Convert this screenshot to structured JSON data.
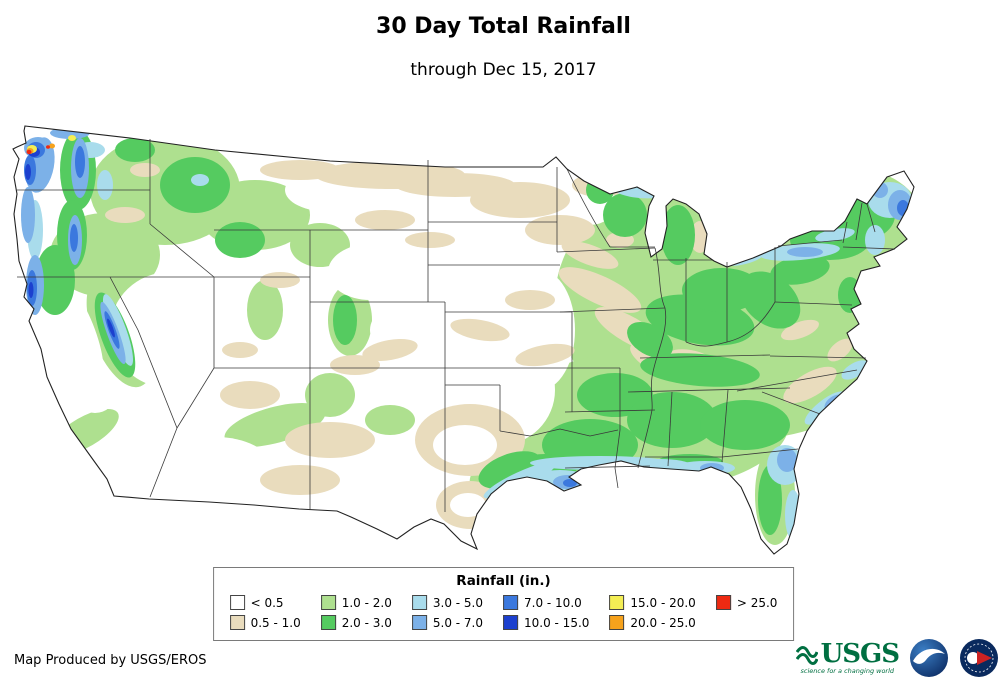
{
  "header": {
    "title": "30 Day Total Rainfall",
    "subtitle": "through Dec 15, 2017"
  },
  "legend": {
    "title": "Rainfall (in.)",
    "entries": [
      {
        "label": "< 0.5",
        "color": "#ffffff"
      },
      {
        "label": "0.5 - 1.0",
        "color": "#e9dcbd"
      },
      {
        "label": "1.0 - 2.0",
        "color": "#aee08f"
      },
      {
        "label": "2.0 - 3.0",
        "color": "#55cb60"
      },
      {
        "label": "3.0 - 5.0",
        "color": "#a9dcec"
      },
      {
        "label": "5.0 - 7.0",
        "color": "#7cb1e8"
      },
      {
        "label": "7.0 - 10.0",
        "color": "#3b78de"
      },
      {
        "label": "10.0 - 15.0",
        "color": "#1c40cf"
      },
      {
        "label": "15.0 - 20.0",
        "color": "#f4ee54"
      },
      {
        "label": "20.0 - 25.0",
        "color": "#f6a21c"
      },
      {
        "label": "> 25.0",
        "color": "#ee2a12"
      }
    ],
    "rows": 2,
    "columns": 6
  },
  "footer": {
    "credit": "Map Produced by USGS/EROS"
  },
  "logos": {
    "usgs": {
      "text": "USGS",
      "tagline": "science for a changing world"
    }
  }
}
